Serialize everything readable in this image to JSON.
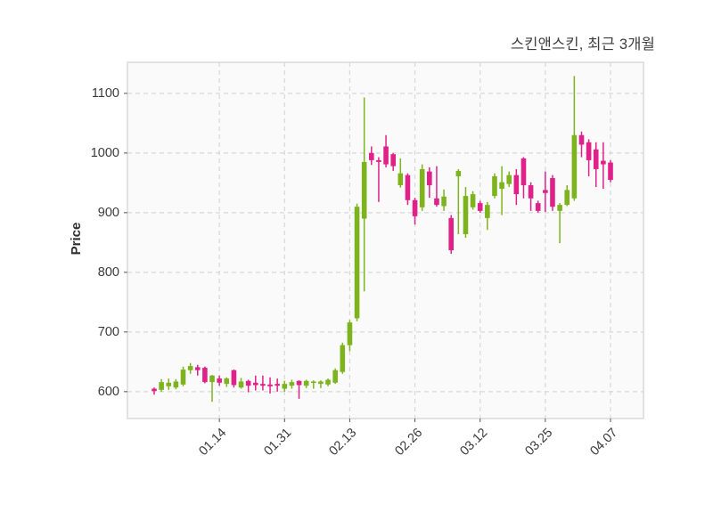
{
  "title": "스킨앤스킨, 최근 3개월",
  "chart_data": {
    "type": "candlestick",
    "title": "스킨앤스킨, 최근 3개월",
    "ylabel": "Price",
    "xlabel": "",
    "grid": "dashed",
    "legend": "none",
    "y_ticks": [
      600,
      700,
      800,
      900,
      1000,
      1100
    ],
    "ylim": [
      555,
      1152
    ],
    "x_tick_labels": [
      "01.14",
      "01.31",
      "02.13",
      "02.26",
      "03.12",
      "03.25",
      "04.07"
    ],
    "x_tick_indices": [
      9,
      18,
      27,
      36,
      45,
      54,
      63
    ],
    "colors": {
      "up": "#7db41e",
      "down": "#e0218a",
      "grid": "#d8d8d8",
      "plot_border": "#e2e2e2",
      "plot_bg": "#fafafa",
      "tick_mark": "#555555"
    },
    "candles_format": [
      "open",
      "high",
      "low",
      "close"
    ],
    "candles": [
      [
        605,
        607,
        595,
        601
      ],
      [
        603,
        621,
        600,
        616
      ],
      [
        609,
        622,
        603,
        615
      ],
      [
        607,
        621,
        604,
        617
      ],
      [
        612,
        642,
        609,
        637
      ],
      [
        636,
        648,
        630,
        643
      ],
      [
        641,
        645,
        627,
        636
      ],
      [
        640,
        642,
        614,
        616
      ],
      [
        616,
        628,
        583,
        627
      ],
      [
        622,
        627,
        610,
        615
      ],
      [
        613,
        624,
        608,
        622
      ],
      [
        636,
        637,
        607,
        611
      ],
      [
        607,
        623,
        605,
        617
      ],
      [
        618,
        620,
        599,
        610
      ],
      [
        615,
        627,
        602,
        611
      ],
      [
        613,
        627,
        602,
        610
      ],
      [
        612,
        624,
        597,
        609
      ],
      [
        613,
        622,
        600,
        610
      ],
      [
        605,
        618,
        600,
        613
      ],
      [
        610,
        620,
        605,
        616
      ],
      [
        618,
        619,
        588,
        611
      ],
      [
        610,
        620,
        606,
        618
      ],
      [
        615,
        619,
        605,
        617
      ],
      [
        613,
        619,
        606,
        617
      ],
      [
        612,
        622,
        609,
        620
      ],
      [
        615,
        639,
        613,
        636
      ],
      [
        633,
        682,
        630,
        678
      ],
      [
        678,
        720,
        668,
        716
      ],
      [
        723,
        915,
        718,
        910
      ],
      [
        890,
        1093,
        768,
        985
      ],
      [
        1000,
        1011,
        980,
        988
      ],
      [
        988,
        993,
        918,
        985
      ],
      [
        1011,
        1030,
        976,
        981
      ],
      [
        998,
        1000,
        970,
        978
      ],
      [
        946,
        991,
        942,
        966
      ],
      [
        963,
        966,
        913,
        921
      ],
      [
        921,
        925,
        880,
        894
      ],
      [
        909,
        981,
        903,
        973
      ],
      [
        969,
        976,
        925,
        946
      ],
      [
        924,
        978,
        910,
        913
      ],
      [
        911,
        939,
        903,
        927
      ],
      [
        891,
        896,
        831,
        837
      ],
      [
        961,
        973,
        864,
        970
      ],
      [
        864,
        943,
        858,
        928
      ],
      [
        909,
        936,
        905,
        931
      ],
      [
        916,
        920,
        900,
        903
      ],
      [
        891,
        918,
        871,
        913
      ],
      [
        928,
        966,
        924,
        961
      ],
      [
        940,
        978,
        896,
        951
      ],
      [
        948,
        969,
        943,
        963
      ],
      [
        963,
        973,
        913,
        931
      ],
      [
        991,
        993,
        924,
        946
      ],
      [
        946,
        951,
        903,
        924
      ],
      [
        916,
        920,
        900,
        903
      ],
      [
        938,
        969,
        901,
        933
      ],
      [
        958,
        963,
        903,
        910
      ],
      [
        903,
        916,
        849,
        913
      ],
      [
        913,
        946,
        911,
        938
      ],
      [
        924,
        1129,
        920,
        1030
      ],
      [
        1030,
        1036,
        993,
        1014
      ],
      [
        1018,
        1023,
        961,
        988
      ],
      [
        1006,
        1018,
        943,
        973
      ],
      [
        987,
        1018,
        940,
        981
      ],
      [
        984,
        988,
        951,
        955
      ]
    ]
  }
}
